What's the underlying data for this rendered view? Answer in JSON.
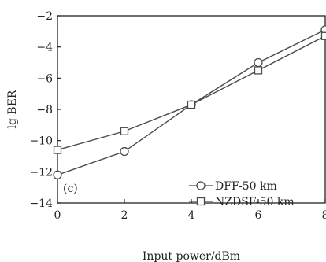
{
  "chart_data": {
    "type": "line",
    "panel_label": "(c)",
    "xlabel": "Input power/dBm",
    "ylabel": "lg BER",
    "xlim": [
      0,
      8
    ],
    "ylim": [
      -14,
      -2
    ],
    "x_ticks": [
      0,
      2,
      4,
      6,
      8
    ],
    "y_ticks": [
      -2,
      -4,
      -6,
      -8,
      -10,
      -12,
      -14
    ],
    "x_tick_labels": [
      "0",
      "2",
      "4",
      "6",
      "8"
    ],
    "y_tick_labels": [
      "−2",
      "−4",
      "−6",
      "−8",
      "−10",
      "−12",
      "−14"
    ],
    "grid": false,
    "legend_position": "bottom-right",
    "x": [
      0,
      2,
      4,
      6,
      8
    ],
    "series": [
      {
        "name": "DFF-50 km",
        "marker": "circle",
        "values": [
          -12.2,
          -10.7,
          -7.7,
          -5.0,
          -2.9
        ]
      },
      {
        "name": "NZDSF-50 km",
        "marker": "square",
        "values": [
          -10.6,
          -9.4,
          -7.7,
          -5.5,
          -3.3
        ]
      }
    ],
    "colors": {
      "line": "#4a4a4a",
      "axis": "#222222"
    }
  }
}
